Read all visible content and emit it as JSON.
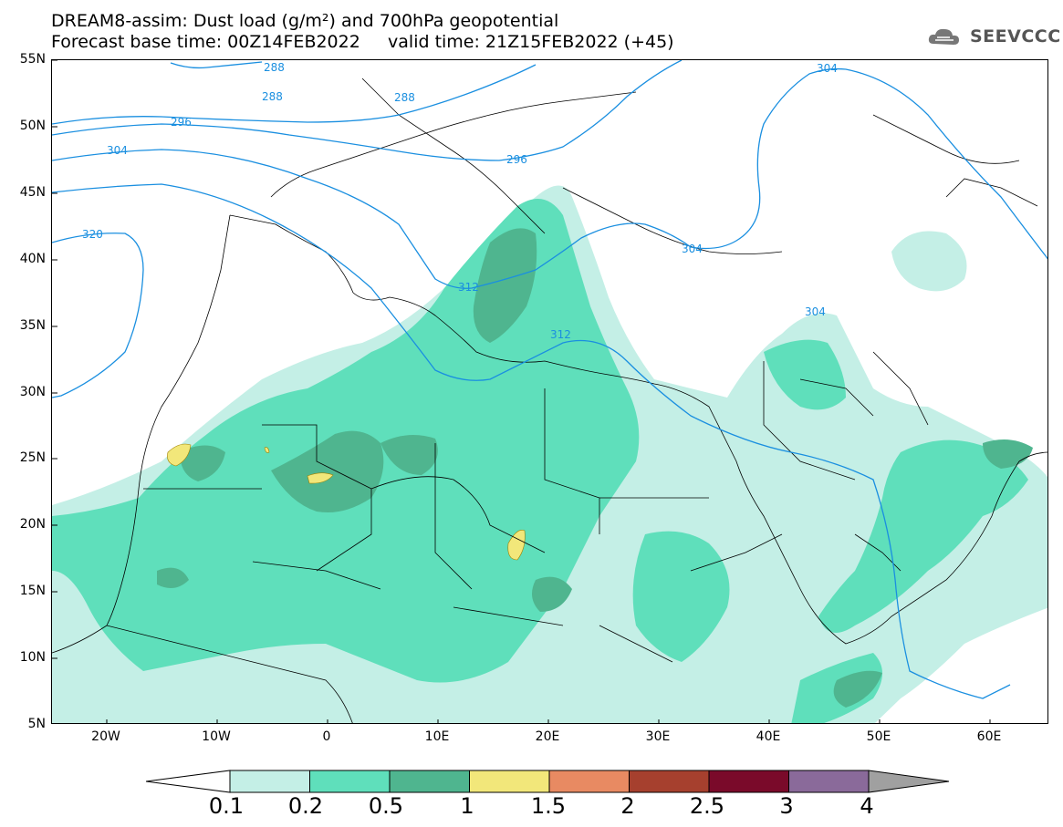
{
  "header": {
    "title_line1": "DREAM8-assim: Dust load (g/m²) and 700hPa geopotential",
    "title_line2": "Forecast base time: 00Z14FEB2022     valid time: 21Z15FEB2022 (+45)"
  },
  "logo": {
    "text": "SEEVCCC",
    "icon": "cloud-logo-icon"
  },
  "map": {
    "lat_labels": [
      "55N",
      "50N",
      "45N",
      "40N",
      "35N",
      "30N",
      "25N",
      "20N",
      "15N",
      "10N",
      "5N"
    ],
    "lon_labels": [
      "20W",
      "10W",
      "0",
      "10E",
      "20E",
      "30E",
      "40E",
      "50E",
      "60E"
    ],
    "contour_labels": [
      "288",
      "288",
      "288",
      "296",
      "296",
      "304",
      "304",
      "304",
      "304",
      "312",
      "312",
      "320"
    ],
    "colors": {
      "level_0_1": "#c4efe6",
      "level_0_2": "#5fdfbb",
      "level_0_5": "#4fb58f",
      "level_1": "#f2e77a",
      "contour": "#1a8fe0",
      "borders": "#000000"
    }
  },
  "colorbar": {
    "labels": [
      "0.1",
      "0.2",
      "0.5",
      "1",
      "1.5",
      "2",
      "2.5",
      "3",
      "4"
    ],
    "colors": [
      "#c4efe6",
      "#5fdfbb",
      "#4fb58f",
      "#f2e77a",
      "#e88a62",
      "#a6402e",
      "#7a0a2a",
      "#8a6a9a"
    ]
  }
}
